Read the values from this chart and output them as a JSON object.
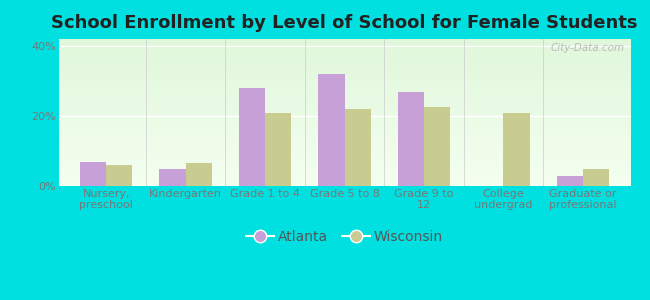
{
  "title": "School Enrollment by Level of School for Female Students",
  "categories": [
    "Nursery,\npreschool",
    "Kindergarten",
    "Grade 1 to 4",
    "Grade 5 to 8",
    "Grade 9 to\n12",
    "College\nundergrad",
    "Graduate or\nprofessional"
  ],
  "atlanta_values": [
    7,
    5,
    28,
    32,
    27,
    0,
    3
  ],
  "wisconsin_values": [
    6,
    6.5,
    21,
    22,
    22.5,
    21,
    5
  ],
  "atlanta_color": "#c8a0d8",
  "wisconsin_color": "#c8cc90",
  "background_color": "#00e0e0",
  "ylabel_ticks": [
    "0%",
    "20%",
    "40%"
  ],
  "yticks": [
    0,
    20,
    40
  ],
  "ylim": [
    0,
    42
  ],
  "title_fontsize": 13,
  "tick_fontsize": 8,
  "legend_fontsize": 10,
  "watermark_text": "City-Data.com"
}
